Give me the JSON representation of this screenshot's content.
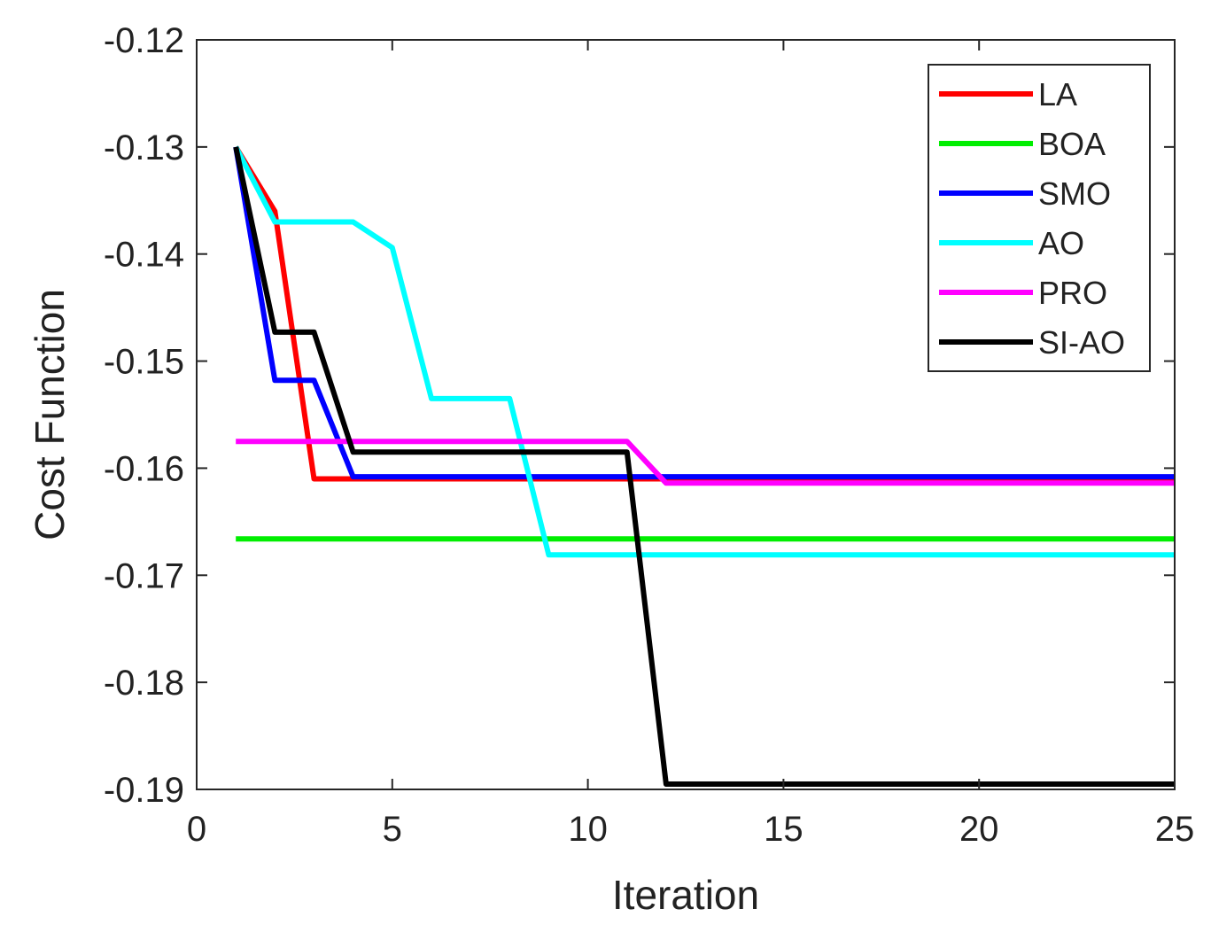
{
  "chart_data": {
    "type": "line",
    "title": "",
    "xlabel": "Iteration",
    "ylabel": "Cost Function",
    "xlim": [
      0,
      25
    ],
    "ylim": [
      -0.19,
      -0.12
    ],
    "xticks": [
      0,
      5,
      10,
      15,
      20,
      25
    ],
    "xtick_labels": [
      "0",
      "5",
      "10",
      "15",
      "20",
      "25"
    ],
    "yticks": [
      -0.12,
      -0.13,
      -0.14,
      -0.15,
      -0.16,
      -0.17,
      -0.18,
      -0.19
    ],
    "ytick_labels": [
      "-0.12",
      "-0.13",
      "-0.14",
      "-0.15",
      "-0.16",
      "-0.17",
      "-0.18",
      "-0.19"
    ],
    "grid": false,
    "legend_position": "top-right",
    "x": [
      1,
      2,
      3,
      4,
      5,
      6,
      7,
      8,
      9,
      10,
      11,
      12,
      13,
      14,
      15,
      16,
      17,
      18,
      19,
      20,
      21,
      22,
      23,
      24,
      25
    ],
    "series": [
      {
        "name": "LA",
        "color": "#ff0000",
        "values": [
          -0.13,
          -0.136,
          -0.161,
          -0.161,
          -0.161,
          -0.161,
          -0.161,
          -0.161,
          -0.161,
          -0.161,
          -0.161,
          -0.161,
          -0.161,
          -0.161,
          -0.161,
          -0.161,
          -0.161,
          -0.161,
          -0.161,
          -0.161,
          -0.161,
          -0.161,
          -0.161,
          -0.161,
          -0.161
        ]
      },
      {
        "name": "BOA",
        "color": "#00ee00",
        "values": [
          -0.1666,
          -0.1666,
          -0.1666,
          -0.1666,
          -0.1666,
          -0.1666,
          -0.1666,
          -0.1666,
          -0.1666,
          -0.1666,
          -0.1666,
          -0.1666,
          -0.1666,
          -0.1666,
          -0.1666,
          -0.1666,
          -0.1666,
          -0.1666,
          -0.1666,
          -0.1666,
          -0.1666,
          -0.1666,
          -0.1666,
          -0.1666,
          -0.1666
        ]
      },
      {
        "name": "SMO",
        "color": "#0000ff",
        "values": [
          -0.13,
          -0.1518,
          -0.1518,
          -0.1608,
          -0.1608,
          -0.1608,
          -0.1608,
          -0.1608,
          -0.1608,
          -0.1608,
          -0.1608,
          -0.1608,
          -0.1608,
          -0.1608,
          -0.1608,
          -0.1608,
          -0.1608,
          -0.1608,
          -0.1608,
          -0.1608,
          -0.1608,
          -0.1608,
          -0.1608,
          -0.1608,
          -0.1608
        ]
      },
      {
        "name": "AO",
        "color": "#00ffff",
        "values": [
          -0.13,
          -0.137,
          -0.137,
          -0.137,
          -0.1394,
          -0.1535,
          -0.1535,
          -0.1535,
          -0.1681,
          -0.1681,
          -0.1681,
          -0.1681,
          -0.1681,
          -0.1681,
          -0.1681,
          -0.1681,
          -0.1681,
          -0.1681,
          -0.1681,
          -0.1681,
          -0.1681,
          -0.1681,
          -0.1681,
          -0.1681,
          -0.1681
        ]
      },
      {
        "name": "PRO",
        "color": "#ff00ff",
        "values": [
          -0.1575,
          -0.1575,
          -0.1575,
          -0.1575,
          -0.1575,
          -0.1575,
          -0.1575,
          -0.1575,
          -0.1575,
          -0.1575,
          -0.1575,
          -0.1614,
          -0.1614,
          -0.1614,
          -0.1614,
          -0.1614,
          -0.1614,
          -0.1614,
          -0.1614,
          -0.1614,
          -0.1614,
          -0.1614,
          -0.1614,
          -0.1614,
          -0.1614
        ]
      },
      {
        "name": "SI-AO",
        "color": "#000000",
        "values": [
          -0.13,
          -0.1473,
          -0.1473,
          -0.1585,
          -0.1585,
          -0.1585,
          -0.1585,
          -0.1585,
          -0.1585,
          -0.1585,
          -0.1585,
          -0.1895,
          -0.1895,
          -0.1895,
          -0.1895,
          -0.1895,
          -0.1895,
          -0.1895,
          -0.1895,
          -0.1895,
          -0.1895,
          -0.1895,
          -0.1895,
          -0.1895,
          -0.1895
        ]
      }
    ]
  }
}
